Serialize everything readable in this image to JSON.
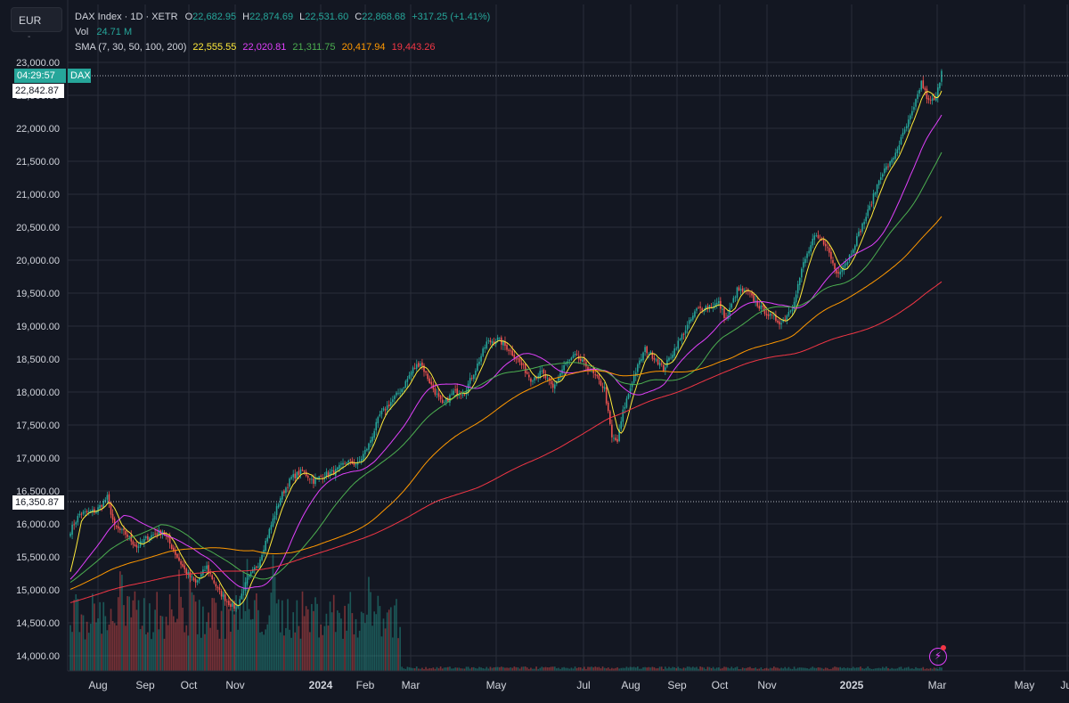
{
  "currency": "EUR",
  "currency_menu_glyph": "-",
  "legend": {
    "symbol": "DAX Index · 1D · XETR",
    "o_label": "O",
    "o_value": "22,682.95",
    "h_label": "H",
    "h_value": "22,874.69",
    "l_label": "L",
    "l_value": "22,531.60",
    "c_label": "C",
    "c_value": "22,868.68",
    "change": "+317.25 (+1.41%)",
    "vol_label": "Vol",
    "vol_value": "24.71 M",
    "sma_label": "SMA (7, 30, 50, 100, 200)",
    "sma_values": [
      {
        "value": "22,555.55",
        "color": "#ffeb3b"
      },
      {
        "value": "22,020.81",
        "color": "#e040fb"
      },
      {
        "value": "21,311.75",
        "color": "#4caf50"
      },
      {
        "value": "20,417.94",
        "color": "#ff9800"
      },
      {
        "value": "19,443.26",
        "color": "#f23645"
      }
    ]
  },
  "price_tags": {
    "countdown": "04:29:57",
    "symbol_tag": "DAX",
    "last_price": "22,842.87",
    "crosshair_price": "16,350.87"
  },
  "colors": {
    "up": "#26a69a",
    "down": "#ef5350",
    "grid": "#2a2e39",
    "axis_text": "#d1d4dc",
    "sma7": "#ffeb3b",
    "sma30": "#e040fb",
    "sma50": "#4caf50",
    "sma100": "#ff9800",
    "sma200": "#f23645"
  },
  "lightning_icon": "⚡",
  "chart_data": {
    "type": "candlestick",
    "ylim": [
      13900,
      23000
    ],
    "y_ticks": [
      {
        "value": 14000,
        "label": "14,000.00"
      },
      {
        "value": 14500,
        "label": "14,500.00"
      },
      {
        "value": 15000,
        "label": "15,000.00"
      },
      {
        "value": 15500,
        "label": "15,500.00"
      },
      {
        "value": 16000,
        "label": "16,000.00"
      },
      {
        "value": 16500,
        "label": "16,500.00"
      },
      {
        "value": 17000,
        "label": "17,000.00"
      },
      {
        "value": 17500,
        "label": "17,500.00"
      },
      {
        "value": 18000,
        "label": "18,000.00"
      },
      {
        "value": 18500,
        "label": "18,500.00"
      },
      {
        "value": 19000,
        "label": "19,000.00"
      },
      {
        "value": 19500,
        "label": "19,500.00"
      },
      {
        "value": 20000,
        "label": "20,000.00"
      },
      {
        "value": 20500,
        "label": "20,500.00"
      },
      {
        "value": 21000,
        "label": "21,000.00"
      },
      {
        "value": 21500,
        "label": "21,500.00"
      },
      {
        "value": 22000,
        "label": "22,000.00"
      },
      {
        "value": 22500,
        "label": "22,500.00"
      },
      {
        "value": 23000,
        "label": "23,000.00"
      }
    ],
    "x_ticks": [
      {
        "label": "Aug",
        "bold": false
      },
      {
        "label": "Sep",
        "bold": false
      },
      {
        "label": "Oct",
        "bold": false
      },
      {
        "label": "Nov",
        "bold": false
      },
      {
        "label": "2024",
        "bold": true
      },
      {
        "label": "Feb",
        "bold": false
      },
      {
        "label": "Mar",
        "bold": false
      },
      {
        "label": "May",
        "bold": false
      },
      {
        "label": "Jul",
        "bold": false
      },
      {
        "label": "Aug",
        "bold": false
      },
      {
        "label": "Sep",
        "bold": false
      },
      {
        "label": "Oct",
        "bold": false
      },
      {
        "label": "Nov",
        "bold": false
      },
      {
        "label": "2025",
        "bold": true
      },
      {
        "label": "Mar",
        "bold": false
      },
      {
        "label": "May",
        "bold": false
      },
      {
        "label": "Jul",
        "bold": false
      }
    ],
    "close_path_anchors": [
      {
        "i": 0,
        "v": 15900
      },
      {
        "i": 5,
        "v": 16150
      },
      {
        "i": 14,
        "v": 16200
      },
      {
        "i": 20,
        "v": 16400
      },
      {
        "i": 24,
        "v": 15950
      },
      {
        "i": 30,
        "v": 15850
      },
      {
        "i": 36,
        "v": 15650
      },
      {
        "i": 42,
        "v": 15800
      },
      {
        "i": 50,
        "v": 15900
      },
      {
        "i": 56,
        "v": 15600
      },
      {
        "i": 62,
        "v": 15300
      },
      {
        "i": 68,
        "v": 15100
      },
      {
        "i": 74,
        "v": 15350
      },
      {
        "i": 80,
        "v": 15000
      },
      {
        "i": 86,
        "v": 14800
      },
      {
        "i": 90,
        "v": 14720
      },
      {
        "i": 96,
        "v": 15150
      },
      {
        "i": 102,
        "v": 15400
      },
      {
        "i": 108,
        "v": 15900
      },
      {
        "i": 114,
        "v": 16400
      },
      {
        "i": 120,
        "v": 16700
      },
      {
        "i": 126,
        "v": 16800
      },
      {
        "i": 132,
        "v": 16650
      },
      {
        "i": 138,
        "v": 16750
      },
      {
        "i": 144,
        "v": 16800
      },
      {
        "i": 150,
        "v": 16950
      },
      {
        "i": 156,
        "v": 16900
      },
      {
        "i": 162,
        "v": 17200
      },
      {
        "i": 168,
        "v": 17650
      },
      {
        "i": 174,
        "v": 17850
      },
      {
        "i": 180,
        "v": 18050
      },
      {
        "i": 186,
        "v": 18350
      },
      {
        "i": 190,
        "v": 18450
      },
      {
        "i": 196,
        "v": 18100
      },
      {
        "i": 202,
        "v": 17800
      },
      {
        "i": 208,
        "v": 18000
      },
      {
        "i": 214,
        "v": 18000
      },
      {
        "i": 220,
        "v": 18350
      },
      {
        "i": 226,
        "v": 18750
      },
      {
        "i": 232,
        "v": 18800
      },
      {
        "i": 238,
        "v": 18650
      },
      {
        "i": 244,
        "v": 18450
      },
      {
        "i": 250,
        "v": 18200
      },
      {
        "i": 256,
        "v": 18300
      },
      {
        "i": 262,
        "v": 18050
      },
      {
        "i": 268,
        "v": 18400
      },
      {
        "i": 274,
        "v": 18550
      },
      {
        "i": 280,
        "v": 18400
      },
      {
        "i": 286,
        "v": 18200
      },
      {
        "i": 290,
        "v": 18050
      },
      {
        "i": 294,
        "v": 17300
      },
      {
        "i": 297,
        "v": 17250
      },
      {
        "i": 300,
        "v": 17700
      },
      {
        "i": 306,
        "v": 18250
      },
      {
        "i": 312,
        "v": 18650
      },
      {
        "i": 318,
        "v": 18500
      },
      {
        "i": 322,
        "v": 18350
      },
      {
        "i": 328,
        "v": 18650
      },
      {
        "i": 334,
        "v": 18950
      },
      {
        "i": 340,
        "v": 19250
      },
      {
        "i": 346,
        "v": 19300
      },
      {
        "i": 352,
        "v": 19350
      },
      {
        "i": 356,
        "v": 19100
      },
      {
        "i": 362,
        "v": 19550
      },
      {
        "i": 368,
        "v": 19500
      },
      {
        "i": 374,
        "v": 19300
      },
      {
        "i": 380,
        "v": 19150
      },
      {
        "i": 386,
        "v": 19050
      },
      {
        "i": 392,
        "v": 19300
      },
      {
        "i": 398,
        "v": 19950
      },
      {
        "i": 404,
        "v": 20350
      },
      {
        "i": 410,
        "v": 20250
      },
      {
        "i": 416,
        "v": 19800
      },
      {
        "i": 422,
        "v": 20000
      },
      {
        "i": 428,
        "v": 20400
      },
      {
        "i": 434,
        "v": 20800
      },
      {
        "i": 440,
        "v": 21300
      },
      {
        "i": 446,
        "v": 21500
      },
      {
        "i": 452,
        "v": 21900
      },
      {
        "i": 458,
        "v": 22300
      },
      {
        "i": 462,
        "v": 22700
      },
      {
        "i": 466,
        "v": 22400
      },
      {
        "i": 470,
        "v": 22450
      },
      {
        "i": 473,
        "v": 22870
      }
    ],
    "total_bars": 474,
    "sma_periods": [
      7,
      30,
      50,
      100,
      200
    ]
  }
}
